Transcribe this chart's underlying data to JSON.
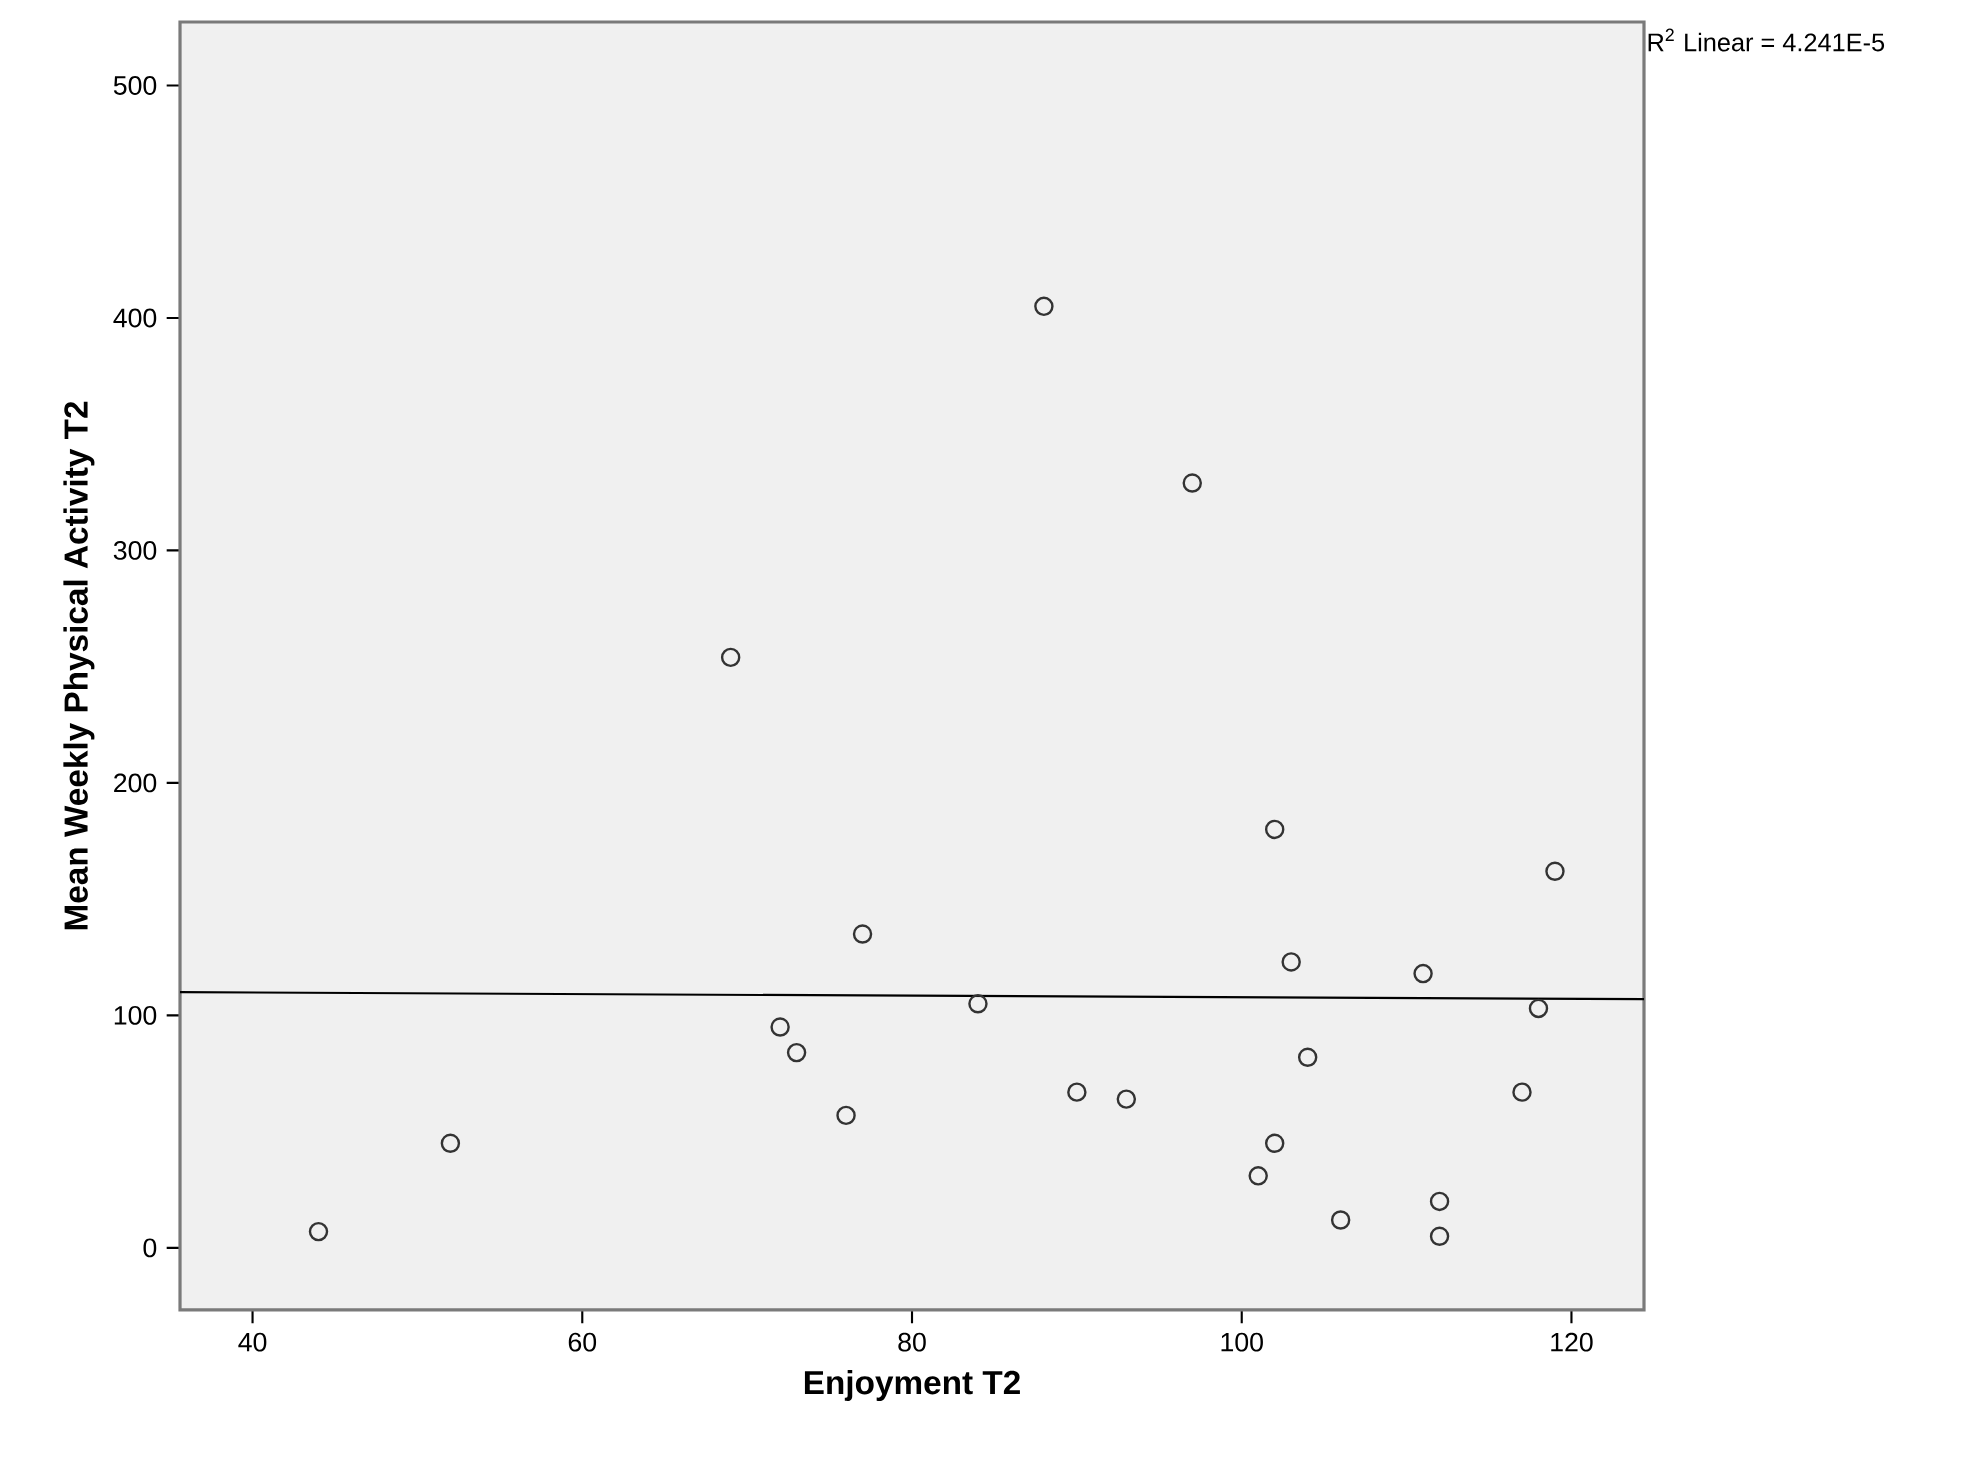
{
  "chart_data": {
    "type": "scatter",
    "xlabel": "Enjoyment T2",
    "ylabel": "Mean Weekly Physical Activity T2",
    "xlim": [
      35.6,
      124.4
    ],
    "ylim": [
      -26.7,
      527.3
    ],
    "xticks": [
      40,
      60,
      80,
      100,
      120
    ],
    "yticks": [
      0,
      100,
      200,
      300,
      400,
      500
    ],
    "annotations": [
      "R$^{2}$ Linear = 4.241E-5"
    ],
    "series": [
      {
        "color": "#333333",
        "marker": "circle",
        "x": [
          69,
          88,
          97,
          77,
          72,
          73,
          76,
          52,
          44,
          102,
          119,
          103,
          111,
          84,
          118,
          104,
          90,
          93,
          117,
          102,
          101,
          106,
          112,
          112
        ],
        "values": [
          254,
          405,
          329,
          135,
          95,
          84,
          57,
          45,
          7,
          180,
          162,
          123,
          118,
          105,
          103,
          82,
          67,
          64,
          67,
          45,
          31,
          12,
          20,
          5
        ]
      },
      {
        "type": "line",
        "color": "#000000",
        "marker": "none",
        "x": [
          35.6,
          124.4
        ],
        "values": [
          110,
          107
        ]
      }
    ]
  }
}
